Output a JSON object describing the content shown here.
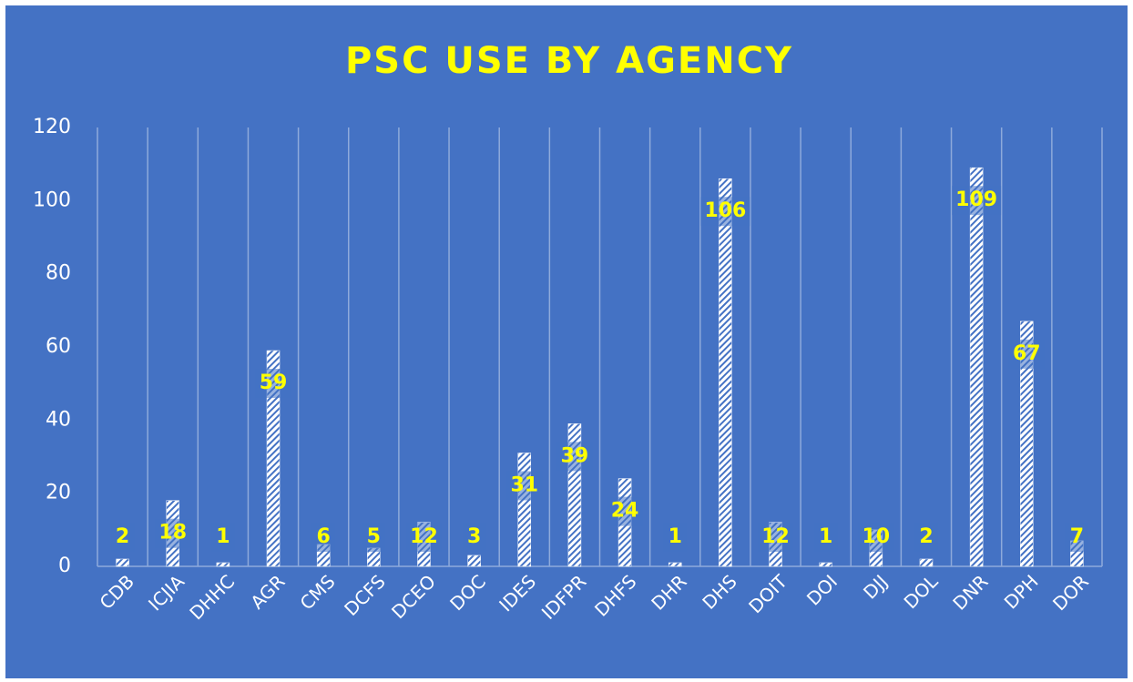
{
  "chart_data": {
    "type": "bar",
    "title": "PSC USE BY AGENCY",
    "categories": [
      "CDB",
      "ICJIA",
      "DHHC",
      "AGR",
      "CMS",
      "DCFS",
      "DCEO",
      "DOC",
      "IDES",
      "IDFPR",
      "DHFS",
      "DHR",
      "DHS",
      "DOIT",
      "DOI",
      "DJJ",
      "DOL",
      "DNR",
      "DPH",
      "DOR"
    ],
    "values": [
      2,
      18,
      1,
      59,
      6,
      5,
      12,
      3,
      31,
      39,
      24,
      1,
      106,
      12,
      1,
      10,
      2,
      109,
      67,
      7
    ],
    "color": "#ffffff",
    "label_color": "#ffff00",
    "background": "#4472c4",
    "ylim": [
      0,
      120
    ],
    "yticks": [
      0,
      20,
      40,
      60,
      80,
      100,
      120
    ],
    "grid": false
  }
}
